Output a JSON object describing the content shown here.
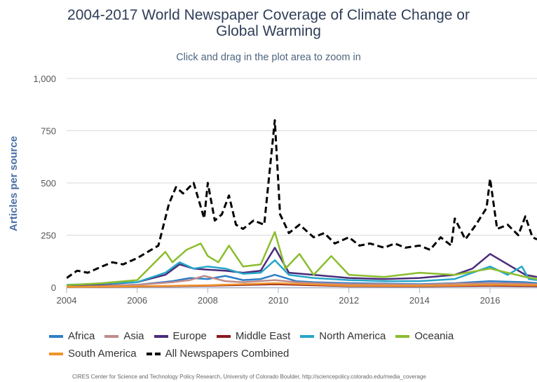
{
  "header": {
    "title_line1": "2004-2017 World Newspaper Coverage of Climate Change or",
    "title_line2": "Global Warming",
    "subtitle": "Click and drag in the plot area to zoom in"
  },
  "credit": "CIRES Center for Science and Technology Policy Research, University of Colorado Boulder, http://sciencepolicy.colorado.edu/media_coverage",
  "chart_data": {
    "type": "line",
    "title": "2004-2017 World Newspaper Coverage of Climate Change or Global Warming",
    "subtitle": "Click and drag in the plot area to zoom in",
    "ylabel": "Articles per source",
    "xlabel": "",
    "xlim": [
      2004,
      2017.33
    ],
    "ylim": [
      0,
      1000
    ],
    "xticks": [
      "2004",
      "2006",
      "2008",
      "2010",
      "2012",
      "2014",
      "2016"
    ],
    "yticks": [
      "0",
      "250",
      "500",
      "750",
      "1,000"
    ],
    "grid": "horizontal",
    "legend_position": "bottom",
    "series": [
      {
        "name": "Africa",
        "color": "#2f7ec4",
        "dash": false,
        "x": [
          2004,
          2005,
          2006,
          2007,
          2007.5,
          2008,
          2008.5,
          2009,
          2009.5,
          2009.9,
          2010.5,
          2011,
          2012,
          2013,
          2014,
          2015,
          2016,
          2017,
          2017.33
        ],
        "y": [
          3,
          8,
          12,
          30,
          45,
          40,
          55,
          35,
          40,
          60,
          30,
          25,
          20,
          18,
          15,
          20,
          30,
          25,
          20
        ]
      },
      {
        "name": "Asia",
        "color": "#c08a8a",
        "dash": false,
        "x": [
          2004,
          2005,
          2006,
          2007,
          2007.5,
          2007.9,
          2008.5,
          2009,
          2009.9,
          2010.5,
          2011,
          2012,
          2013,
          2014,
          2015,
          2016,
          2017,
          2017.33
        ],
        "y": [
          5,
          8,
          12,
          25,
          35,
          55,
          30,
          25,
          35,
          25,
          20,
          15,
          15,
          12,
          18,
          20,
          18,
          15
        ]
      },
      {
        "name": "Europe",
        "color": "#4a2c7a",
        "dash": false,
        "x": [
          2004,
          2005,
          2006,
          2006.8,
          2007.2,
          2007.6,
          2008,
          2008.5,
          2009,
          2009.5,
          2009.9,
          2010.3,
          2011,
          2012,
          2013,
          2014,
          2015,
          2015.5,
          2016,
          2016.4,
          2017,
          2017.33
        ],
        "y": [
          10,
          15,
          25,
          60,
          110,
          90,
          85,
          80,
          70,
          80,
          190,
          70,
          60,
          45,
          40,
          45,
          60,
          90,
          160,
          120,
          60,
          50
        ]
      },
      {
        "name": "Middle East",
        "color": "#8b1a1a",
        "dash": false,
        "x": [
          2004,
          2006,
          2008,
          2009.9,
          2012,
          2014,
          2016,
          2017.33
        ],
        "y": [
          2,
          4,
          8,
          15,
          6,
          5,
          8,
          6
        ]
      },
      {
        "name": "North America",
        "color": "#27a6c9",
        "dash": false,
        "x": [
          2004,
          2005,
          2006,
          2006.8,
          2007.2,
          2007.6,
          2008,
          2008.5,
          2009,
          2009.5,
          2009.9,
          2010.3,
          2011,
          2012,
          2013,
          2014,
          2015,
          2016,
          2016.5,
          2016.9,
          2017.1,
          2017.33
        ],
        "y": [
          12,
          18,
          25,
          70,
          120,
          90,
          100,
          90,
          65,
          70,
          130,
          60,
          45,
          35,
          30,
          30,
          40,
          100,
          60,
          100,
          40,
          35
        ]
      },
      {
        "name": "Oceania",
        "color": "#8bbd2e",
        "dash": false,
        "x": [
          2004,
          2005,
          2006,
          2006.8,
          2007,
          2007.4,
          2007.8,
          2008,
          2008.3,
          2008.6,
          2009,
          2009.5,
          2009.9,
          2010.2,
          2010.6,
          2011,
          2011.5,
          2012,
          2013,
          2014,
          2015,
          2016,
          2017,
          2017.33
        ],
        "y": [
          10,
          20,
          35,
          170,
          120,
          180,
          210,
          150,
          120,
          200,
          100,
          110,
          265,
          90,
          160,
          60,
          150,
          60,
          50,
          70,
          60,
          90,
          50,
          40
        ]
      },
      {
        "name": "South America",
        "color": "#f0932b",
        "dash": false,
        "x": [
          2004,
          2006,
          2008,
          2009.9,
          2012,
          2014,
          2016,
          2017.33
        ],
        "y": [
          2,
          5,
          10,
          20,
          8,
          7,
          12,
          10
        ]
      },
      {
        "name": "All Newspapers Combined",
        "color": "#000000",
        "dash": true,
        "x": [
          2004,
          2004.3,
          2004.6,
          2005,
          2005.3,
          2005.6,
          2006,
          2006.3,
          2006.6,
          2006.9,
          2007.1,
          2007.3,
          2007.6,
          2007.9,
          2008,
          2008.2,
          2008.4,
          2008.6,
          2008.8,
          2009,
          2009.3,
          2009.6,
          2009.9,
          2010.05,
          2010.3,
          2010.6,
          2011,
          2011.3,
          2011.6,
          2012,
          2012.3,
          2012.6,
          2013,
          2013.3,
          2013.6,
          2014,
          2014.3,
          2014.6,
          2014.9,
          2015,
          2015.3,
          2015.6,
          2015.9,
          2016,
          2016.2,
          2016.5,
          2016.8,
          2017,
          2017.2,
          2017.33
        ],
        "y": [
          45,
          80,
          70,
          100,
          120,
          110,
          140,
          170,
          200,
          400,
          480,
          450,
          500,
          330,
          500,
          320,
          350,
          440,
          300,
          280,
          320,
          300,
          800,
          350,
          260,
          300,
          240,
          260,
          210,
          240,
          200,
          210,
          190,
          210,
          190,
          200,
          180,
          240,
          200,
          330,
          230,
          300,
          380,
          520,
          280,
          300,
          250,
          340,
          240,
          230
        ]
      }
    ]
  }
}
